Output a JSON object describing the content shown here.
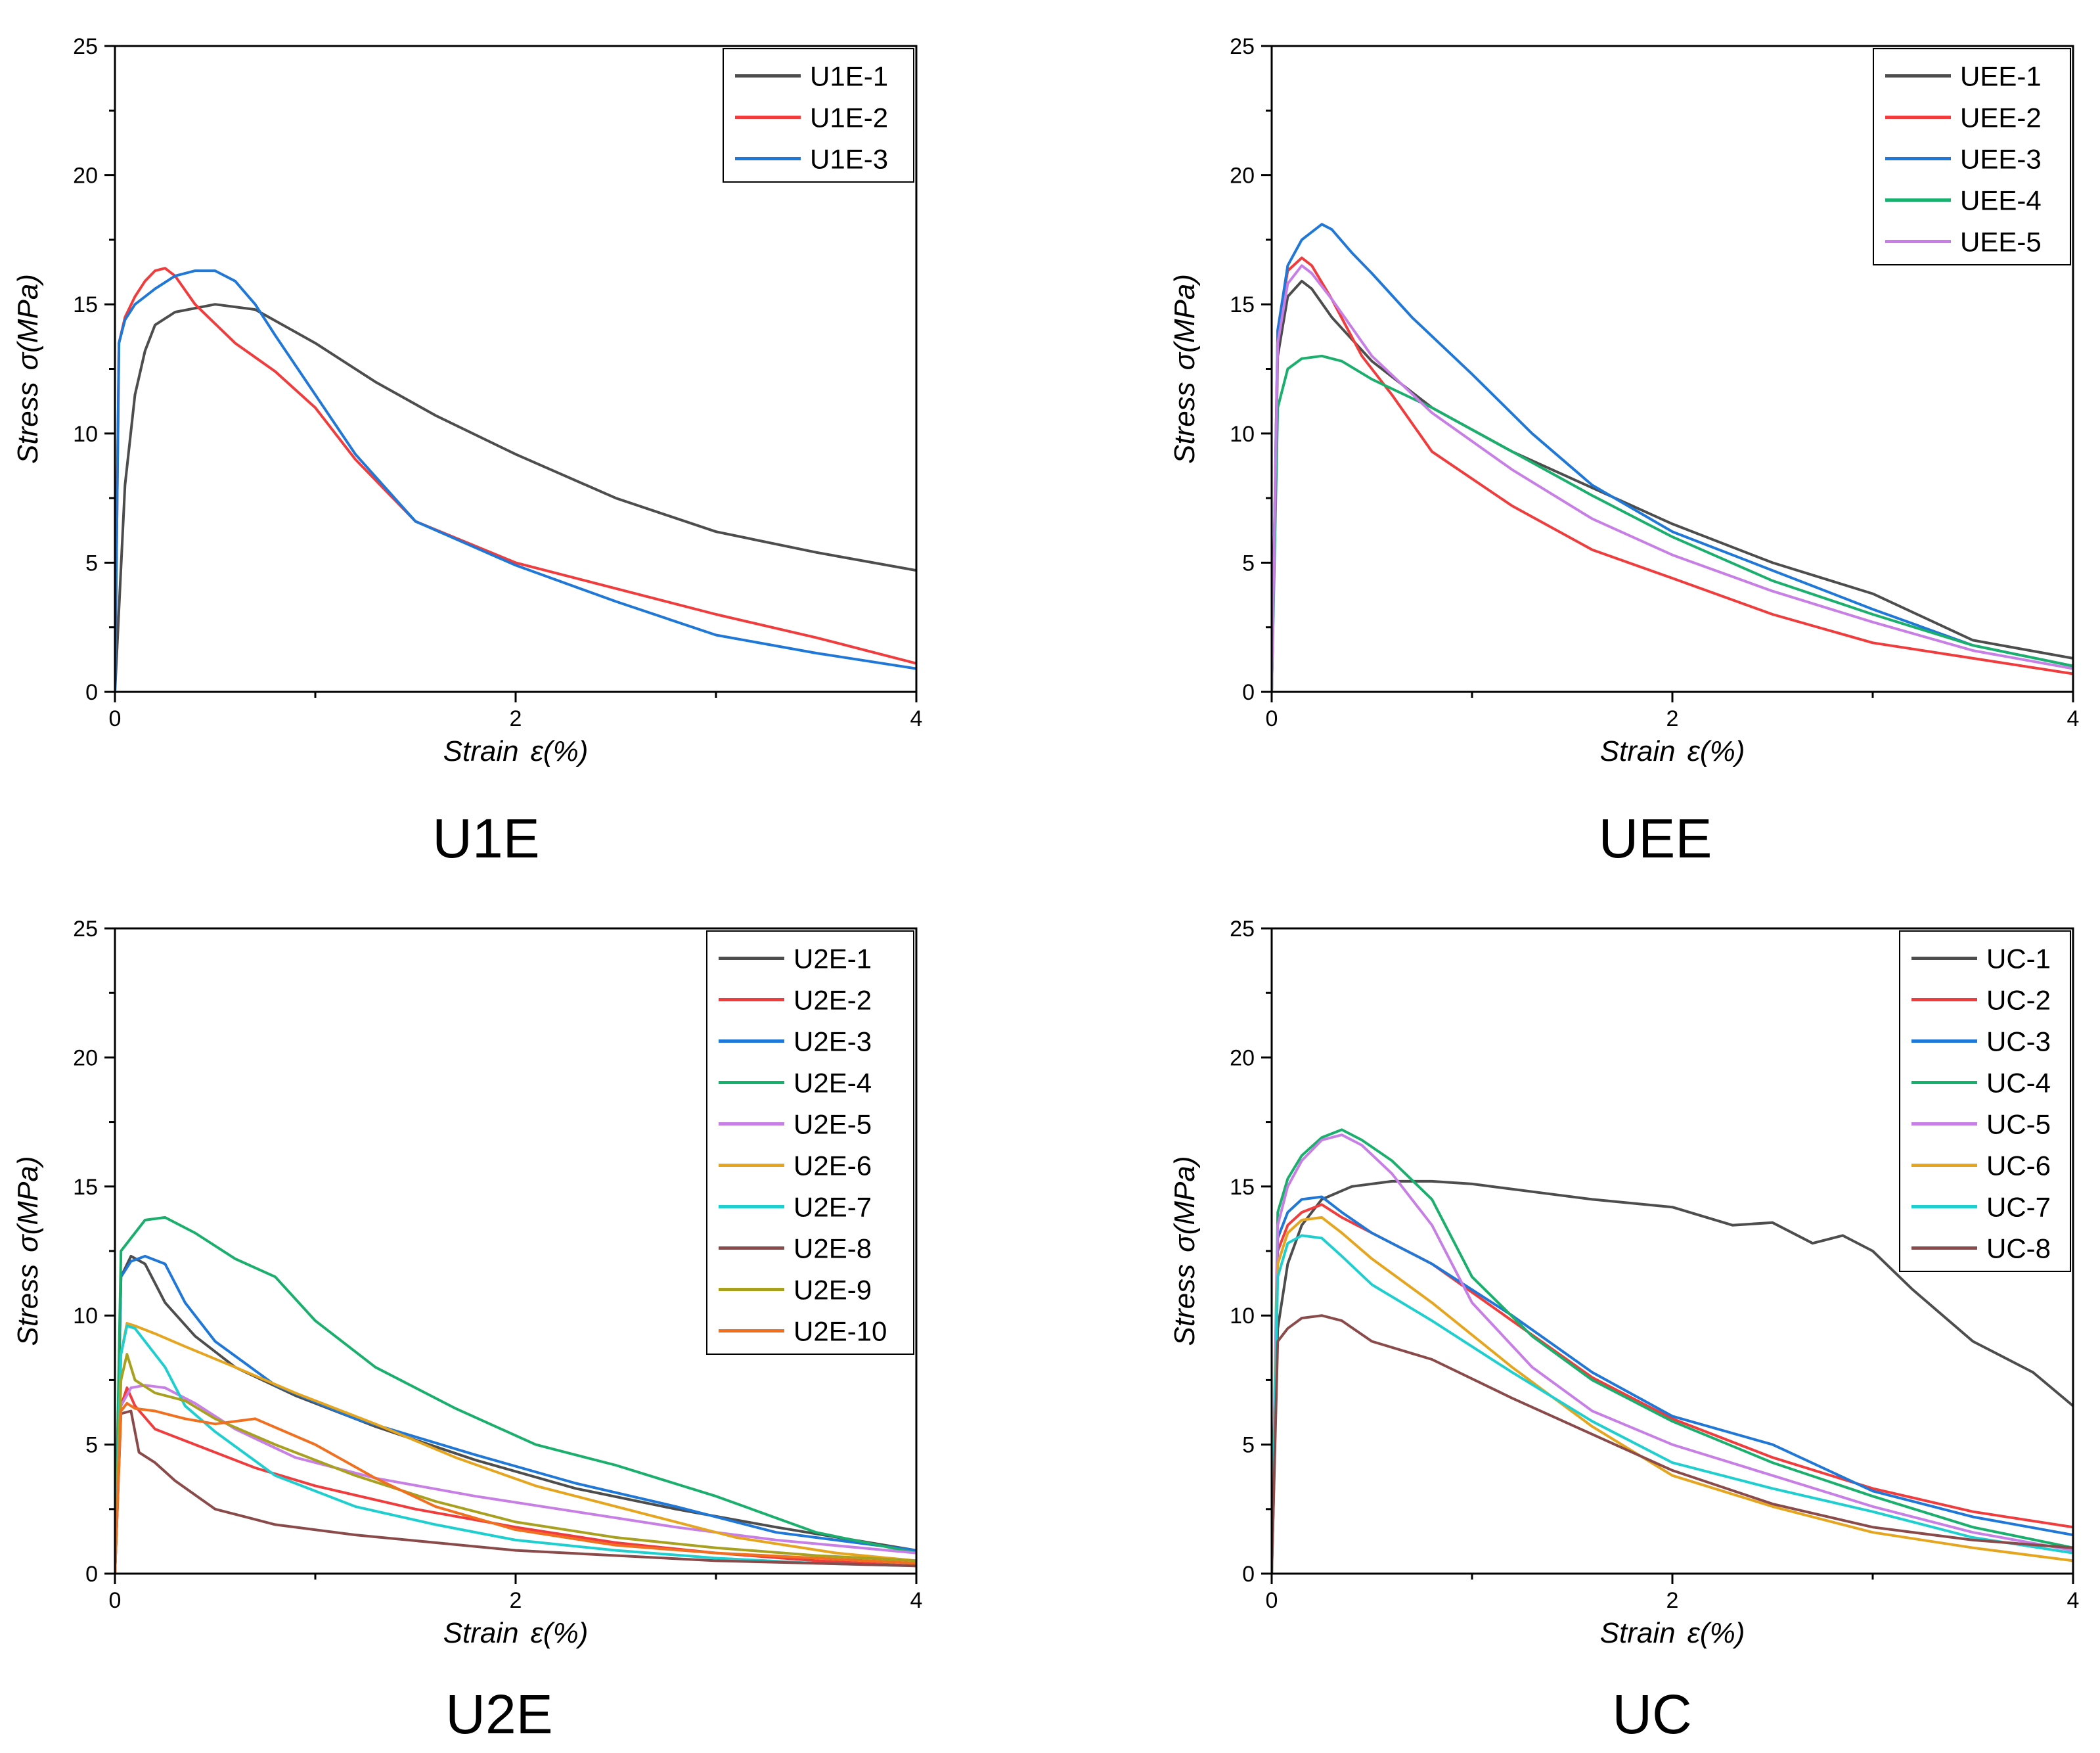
{
  "chart_data": [
    {
      "type": "line",
      "title": "U1E",
      "xlabel": "Strain ε(%)",
      "ylabel": "Stress σ(MPa)",
      "xlabel_parts": [
        "Strain",
        "ε(%)"
      ],
      "ylabel_parts": [
        "Stress",
        "σ(MPa)"
      ],
      "xlim": [
        0,
        4
      ],
      "ylim": [
        0,
        25
      ],
      "xticks": [
        0,
        2,
        4
      ],
      "yticks": [
        0,
        5,
        10,
        15,
        20,
        25
      ],
      "legend_position": "top-right",
      "series": [
        {
          "name": "U1E-1",
          "color": "#4d4d4d",
          "x": [
            0,
            0.05,
            0.1,
            0.15,
            0.2,
            0.3,
            0.5,
            0.7,
            1.0,
            1.3,
            1.6,
            2.0,
            2.5,
            3.0,
            3.5,
            4.0
          ],
          "y": [
            0,
            8,
            11.5,
            13.2,
            14.2,
            14.7,
            15,
            14.8,
            13.5,
            12,
            10.7,
            9.2,
            7.5,
            6.2,
            5.4,
            4.7
          ]
        },
        {
          "name": "U1E-2",
          "color": "#f03c3c",
          "x": [
            0,
            0.02,
            0.05,
            0.1,
            0.15,
            0.2,
            0.25,
            0.3,
            0.4,
            0.6,
            0.8,
            1.0,
            1.2,
            1.5,
            2.0,
            2.5,
            3.0,
            3.5,
            4.0
          ],
          "y": [
            0,
            13.5,
            14.5,
            15.3,
            15.9,
            16.3,
            16.4,
            16.1,
            15.0,
            13.5,
            12.4,
            11.0,
            9.0,
            6.6,
            5.0,
            4.0,
            3.0,
            2.1,
            1.1
          ]
        },
        {
          "name": "U1E-3",
          "color": "#1f77d8",
          "x": [
            0,
            0.02,
            0.05,
            0.1,
            0.15,
            0.2,
            0.3,
            0.4,
            0.5,
            0.6,
            0.7,
            0.8,
            1.0,
            1.2,
            1.5,
            2.0,
            2.5,
            3.0,
            3.5,
            4.0
          ],
          "y": [
            0,
            13.5,
            14.4,
            15,
            15.3,
            15.6,
            16.1,
            16.3,
            16.3,
            15.9,
            15.0,
            13.8,
            11.5,
            9.2,
            6.6,
            4.9,
            3.5,
            2.2,
            1.5,
            0.9
          ]
        }
      ]
    },
    {
      "type": "line",
      "title": "UEE",
      "xlabel": "Strain ε(%)",
      "ylabel": "Stress σ(MPa)",
      "xlabel_parts": [
        "Strain",
        "ε(%)"
      ],
      "ylabel_parts": [
        "Stress",
        "σ(MPa)"
      ],
      "xlim": [
        0,
        4
      ],
      "ylim": [
        0,
        25
      ],
      "xticks": [
        0,
        2,
        4
      ],
      "yticks": [
        0,
        5,
        10,
        15,
        20,
        25
      ],
      "legend_position": "top-right",
      "series": [
        {
          "name": "UEE-1",
          "color": "#4d4d4d",
          "x": [
            0,
            0.03,
            0.08,
            0.15,
            0.2,
            0.3,
            0.5,
            0.8,
            1.2,
            1.6,
            2.0,
            2.5,
            3.0,
            3.5,
            4.0
          ],
          "y": [
            0,
            13,
            15.3,
            15.9,
            15.6,
            14.5,
            12.8,
            11,
            9.3,
            7.9,
            6.5,
            5.0,
            3.8,
            2.0,
            1.3
          ]
        },
        {
          "name": "UEE-2",
          "color": "#f03c3c",
          "x": [
            0,
            0.03,
            0.08,
            0.15,
            0.2,
            0.3,
            0.45,
            0.6,
            0.8,
            1.2,
            1.6,
            2.0,
            2.5,
            3.0,
            3.5,
            4.0
          ],
          "y": [
            0,
            14,
            16.3,
            16.8,
            16.5,
            15.2,
            13,
            11.5,
            9.3,
            7.2,
            5.5,
            4.4,
            3.0,
            1.9,
            1.3,
            0.7
          ]
        },
        {
          "name": "UEE-3",
          "color": "#1f77d8",
          "x": [
            0,
            0.03,
            0.08,
            0.15,
            0.25,
            0.3,
            0.4,
            0.5,
            0.7,
            1.0,
            1.3,
            1.6,
            2.0,
            2.5,
            3.0,
            3.5,
            4.0
          ],
          "y": [
            0,
            14,
            16.5,
            17.5,
            18.1,
            17.9,
            17.0,
            16.2,
            14.5,
            12.3,
            10.0,
            8.0,
            6.2,
            4.7,
            3.2,
            1.8,
            1.0
          ]
        },
        {
          "name": "UEE-4",
          "color": "#1aaf6c",
          "x": [
            0,
            0.03,
            0.08,
            0.15,
            0.25,
            0.35,
            0.5,
            0.8,
            1.2,
            1.6,
            2.0,
            2.5,
            3.0,
            3.5,
            4.0
          ],
          "y": [
            0,
            11,
            12.5,
            12.9,
            13.0,
            12.8,
            12.1,
            11.0,
            9.3,
            7.6,
            6.0,
            4.3,
            3.0,
            1.8,
            1.0
          ]
        },
        {
          "name": "UEE-5",
          "color": "#c77fe6",
          "x": [
            0,
            0.03,
            0.08,
            0.15,
            0.2,
            0.3,
            0.5,
            0.8,
            1.2,
            1.6,
            2.0,
            2.5,
            3.0,
            3.5,
            4.0
          ],
          "y": [
            0,
            13.5,
            15.8,
            16.5,
            16.2,
            15.2,
            13.0,
            10.8,
            8.6,
            6.7,
            5.3,
            3.9,
            2.7,
            1.6,
            0.9
          ]
        }
      ]
    },
    {
      "type": "line",
      "title": "U2E",
      "xlabel": "Strain ε(%)",
      "ylabel": "Stress σ(MPa)",
      "xlabel_parts": [
        "Strain",
        "ε(%)"
      ],
      "ylabel_parts": [
        "Stress",
        "σ(MPa)"
      ],
      "xlim": [
        0,
        4
      ],
      "ylim": [
        0,
        25
      ],
      "xticks": [
        0,
        2,
        4
      ],
      "yticks": [
        0,
        5,
        10,
        15,
        20,
        25
      ],
      "legend_position": "top-right",
      "series": [
        {
          "name": "U2E-1",
          "color": "#4d4d4d",
          "x": [
            0,
            0.03,
            0.08,
            0.15,
            0.25,
            0.4,
            0.6,
            0.9,
            1.3,
            1.8,
            2.3,
            2.8,
            3.3,
            4.0
          ],
          "y": [
            0,
            11.5,
            12.3,
            12.0,
            10.5,
            9.2,
            8.0,
            6.9,
            5.7,
            4.4,
            3.3,
            2.5,
            1.8,
            0.9
          ]
        },
        {
          "name": "U2E-2",
          "color": "#f03c3c",
          "x": [
            0,
            0.03,
            0.06,
            0.1,
            0.2,
            0.4,
            0.7,
            1.0,
            1.5,
            2.0,
            2.5,
            3.0,
            3.5,
            4.0
          ],
          "y": [
            0,
            6.5,
            7.2,
            6.5,
            5.6,
            5.0,
            4.1,
            3.4,
            2.5,
            1.8,
            1.2,
            0.8,
            0.5,
            0.3
          ]
        },
        {
          "name": "U2E-3",
          "color": "#1f77d8",
          "x": [
            0,
            0.03,
            0.08,
            0.15,
            0.25,
            0.35,
            0.5,
            0.8,
            1.2,
            1.8,
            2.3,
            2.8,
            3.3,
            4.0
          ],
          "y": [
            0,
            11.5,
            12.1,
            12.3,
            12.0,
            10.5,
            9.0,
            7.3,
            6.0,
            4.6,
            3.5,
            2.6,
            1.6,
            0.9
          ]
        },
        {
          "name": "U2E-4",
          "color": "#1aaf6c",
          "x": [
            0,
            0.03,
            0.08,
            0.15,
            0.25,
            0.4,
            0.6,
            0.8,
            1.0,
            1.3,
            1.7,
            2.1,
            2.5,
            3.0,
            3.5,
            4.0
          ],
          "y": [
            0,
            12.5,
            13.0,
            13.7,
            13.8,
            13.2,
            12.2,
            11.5,
            9.8,
            8.0,
            6.4,
            5.0,
            4.2,
            3.0,
            1.6,
            0.8
          ]
        },
        {
          "name": "U2E-5",
          "color": "#c77fe6",
          "x": [
            0,
            0.03,
            0.08,
            0.15,
            0.25,
            0.4,
            0.6,
            0.9,
            1.3,
            1.8,
            2.3,
            2.8,
            3.3,
            4.0
          ],
          "y": [
            0,
            6.5,
            7.2,
            7.3,
            7.2,
            6.6,
            5.6,
            4.5,
            3.7,
            3.0,
            2.4,
            1.8,
            1.3,
            0.8
          ]
        },
        {
          "name": "U2E-6",
          "color": "#e6a51f",
          "x": [
            0,
            0.03,
            0.06,
            0.1,
            0.2,
            0.35,
            0.6,
            0.9,
            1.3,
            1.7,
            2.1,
            2.6,
            3.1,
            3.6,
            4.0
          ],
          "y": [
            0,
            8.5,
            9.7,
            9.6,
            9.3,
            8.8,
            8.0,
            7.0,
            5.8,
            4.5,
            3.4,
            2.4,
            1.4,
            0.8,
            0.5
          ]
        },
        {
          "name": "U2E-7",
          "color": "#1fcfd0",
          "x": [
            0,
            0.03,
            0.06,
            0.1,
            0.15,
            0.25,
            0.35,
            0.5,
            0.8,
            1.2,
            1.6,
            2.0,
            2.5,
            3.0,
            3.5,
            4.0
          ],
          "y": [
            0,
            8.5,
            9.6,
            9.5,
            9.0,
            8.0,
            6.5,
            5.5,
            3.8,
            2.6,
            1.9,
            1.3,
            0.9,
            0.6,
            0.4,
            0.3
          ]
        },
        {
          "name": "U2E-8",
          "color": "#8b4a4a",
          "x": [
            0,
            0.03,
            0.08,
            0.12,
            0.2,
            0.3,
            0.5,
            0.8,
            1.2,
            1.6,
            2.0,
            2.5,
            3.0,
            3.5,
            4.0
          ],
          "y": [
            0,
            6.2,
            6.3,
            4.7,
            4.3,
            3.6,
            2.5,
            1.9,
            1.5,
            1.2,
            0.9,
            0.7,
            0.5,
            0.4,
            0.3
          ]
        },
        {
          "name": "U2E-9",
          "color": "#a8a01f",
          "x": [
            0,
            0.03,
            0.06,
            0.1,
            0.2,
            0.35,
            0.5,
            0.8,
            1.2,
            1.6,
            2.0,
            2.5,
            3.0,
            3.5,
            4.0
          ],
          "y": [
            0,
            7.5,
            8.5,
            7.5,
            7.0,
            6.7,
            6.0,
            5.0,
            3.8,
            2.8,
            2.0,
            1.4,
            1.0,
            0.7,
            0.5
          ]
        },
        {
          "name": "U2E-10",
          "color": "#f07020",
          "x": [
            0,
            0.03,
            0.06,
            0.1,
            0.2,
            0.35,
            0.5,
            0.7,
            1.0,
            1.3,
            1.6,
            2.0,
            2.5,
            3.0,
            3.5,
            4.0
          ],
          "y": [
            0,
            6.3,
            6.6,
            6.4,
            6.3,
            6.0,
            5.8,
            6.0,
            5.0,
            3.7,
            2.6,
            1.7,
            1.1,
            0.8,
            0.6,
            0.4
          ]
        }
      ]
    },
    {
      "type": "line",
      "title": "UC",
      "xlabel": "Strain ε(%)",
      "ylabel": "Stress σ(MPa)",
      "xlabel_parts": [
        "Strain",
        "ε(%)"
      ],
      "ylabel_parts": [
        "Stress",
        "σ(MPa)"
      ],
      "xlim": [
        0,
        4
      ],
      "ylim": [
        0,
        25
      ],
      "xticks": [
        0,
        2,
        4
      ],
      "yticks": [
        0,
        5,
        10,
        15,
        20,
        25
      ],
      "legend_position": "top-right",
      "series": [
        {
          "name": "UC-1",
          "color": "#4d4d4d",
          "x": [
            0,
            0.03,
            0.08,
            0.15,
            0.25,
            0.4,
            0.6,
            0.8,
            1.0,
            1.3,
            1.6,
            2.0,
            2.3,
            2.5,
            2.7,
            2.85,
            3.0,
            3.2,
            3.5,
            3.8,
            4.0
          ],
          "y": [
            0,
            9.5,
            12,
            13.5,
            14.5,
            15.0,
            15.2,
            15.2,
            15.1,
            14.8,
            14.5,
            14.2,
            13.5,
            13.6,
            12.8,
            13.1,
            12.5,
            11.0,
            9.0,
            7.8,
            6.5
          ]
        },
        {
          "name": "UC-2",
          "color": "#f03c3c",
          "x": [
            0,
            0.03,
            0.08,
            0.15,
            0.25,
            0.35,
            0.5,
            0.8,
            1.2,
            1.6,
            2.0,
            2.5,
            3.0,
            3.5,
            4.0
          ],
          "y": [
            0,
            12.5,
            13.5,
            14.0,
            14.3,
            13.8,
            13.2,
            12.0,
            9.8,
            7.6,
            6.0,
            4.5,
            3.3,
            2.4,
            1.8
          ]
        },
        {
          "name": "UC-3",
          "color": "#1f77d8",
          "x": [
            0,
            0.03,
            0.08,
            0.15,
            0.25,
            0.35,
            0.5,
            0.8,
            1.2,
            1.6,
            2.0,
            2.5,
            3.0,
            3.5,
            4.0
          ],
          "y": [
            0,
            13.0,
            14.0,
            14.5,
            14.6,
            14.0,
            13.2,
            12.0,
            10.0,
            7.8,
            6.1,
            5.0,
            3.2,
            2.2,
            1.5
          ]
        },
        {
          "name": "UC-4",
          "color": "#1aaf6c",
          "x": [
            0,
            0.03,
            0.08,
            0.15,
            0.25,
            0.35,
            0.45,
            0.6,
            0.8,
            1.0,
            1.3,
            1.6,
            2.0,
            2.5,
            3.0,
            3.5,
            4.0
          ],
          "y": [
            0,
            14.0,
            15.3,
            16.2,
            16.9,
            17.2,
            16.8,
            16.0,
            14.5,
            11.5,
            9.2,
            7.5,
            5.9,
            4.3,
            3.0,
            1.8,
            1.0
          ]
        },
        {
          "name": "UC-5",
          "color": "#c77fe6",
          "x": [
            0,
            0.03,
            0.08,
            0.15,
            0.25,
            0.35,
            0.45,
            0.6,
            0.8,
            1.0,
            1.3,
            1.6,
            2.0,
            2.5,
            3.0,
            3.5,
            4.0
          ],
          "y": [
            0,
            13.5,
            15.0,
            16.0,
            16.8,
            17.0,
            16.6,
            15.5,
            13.5,
            10.5,
            8.0,
            6.3,
            5.0,
            3.8,
            2.6,
            1.6,
            0.9
          ]
        },
        {
          "name": "UC-6",
          "color": "#e6a51f",
          "x": [
            0,
            0.03,
            0.08,
            0.15,
            0.25,
            0.35,
            0.5,
            0.8,
            1.2,
            1.6,
            2.0,
            2.5,
            3.0,
            3.5,
            4.0
          ],
          "y": [
            0,
            12.0,
            13.2,
            13.7,
            13.8,
            13.2,
            12.2,
            10.5,
            8.0,
            5.7,
            3.8,
            2.6,
            1.6,
            1.0,
            0.5
          ]
        },
        {
          "name": "UC-7",
          "color": "#1fcfd0",
          "x": [
            0,
            0.03,
            0.08,
            0.15,
            0.25,
            0.35,
            0.5,
            0.8,
            1.2,
            1.6,
            2.0,
            2.5,
            3.0,
            3.5,
            4.0
          ],
          "y": [
            0,
            11.5,
            12.8,
            13.1,
            13.0,
            12.3,
            11.2,
            9.8,
            7.8,
            5.9,
            4.3,
            3.3,
            2.4,
            1.4,
            0.8
          ]
        },
        {
          "name": "UC-8",
          "color": "#8b4a4a",
          "x": [
            0,
            0.03,
            0.08,
            0.15,
            0.25,
            0.35,
            0.5,
            0.8,
            1.2,
            1.6,
            2.0,
            2.5,
            3.0,
            3.5,
            4.0
          ],
          "y": [
            0,
            9.0,
            9.5,
            9.9,
            10.0,
            9.8,
            9.0,
            8.3,
            6.8,
            5.4,
            4.0,
            2.7,
            1.8,
            1.3,
            1.0
          ]
        }
      ]
    }
  ]
}
